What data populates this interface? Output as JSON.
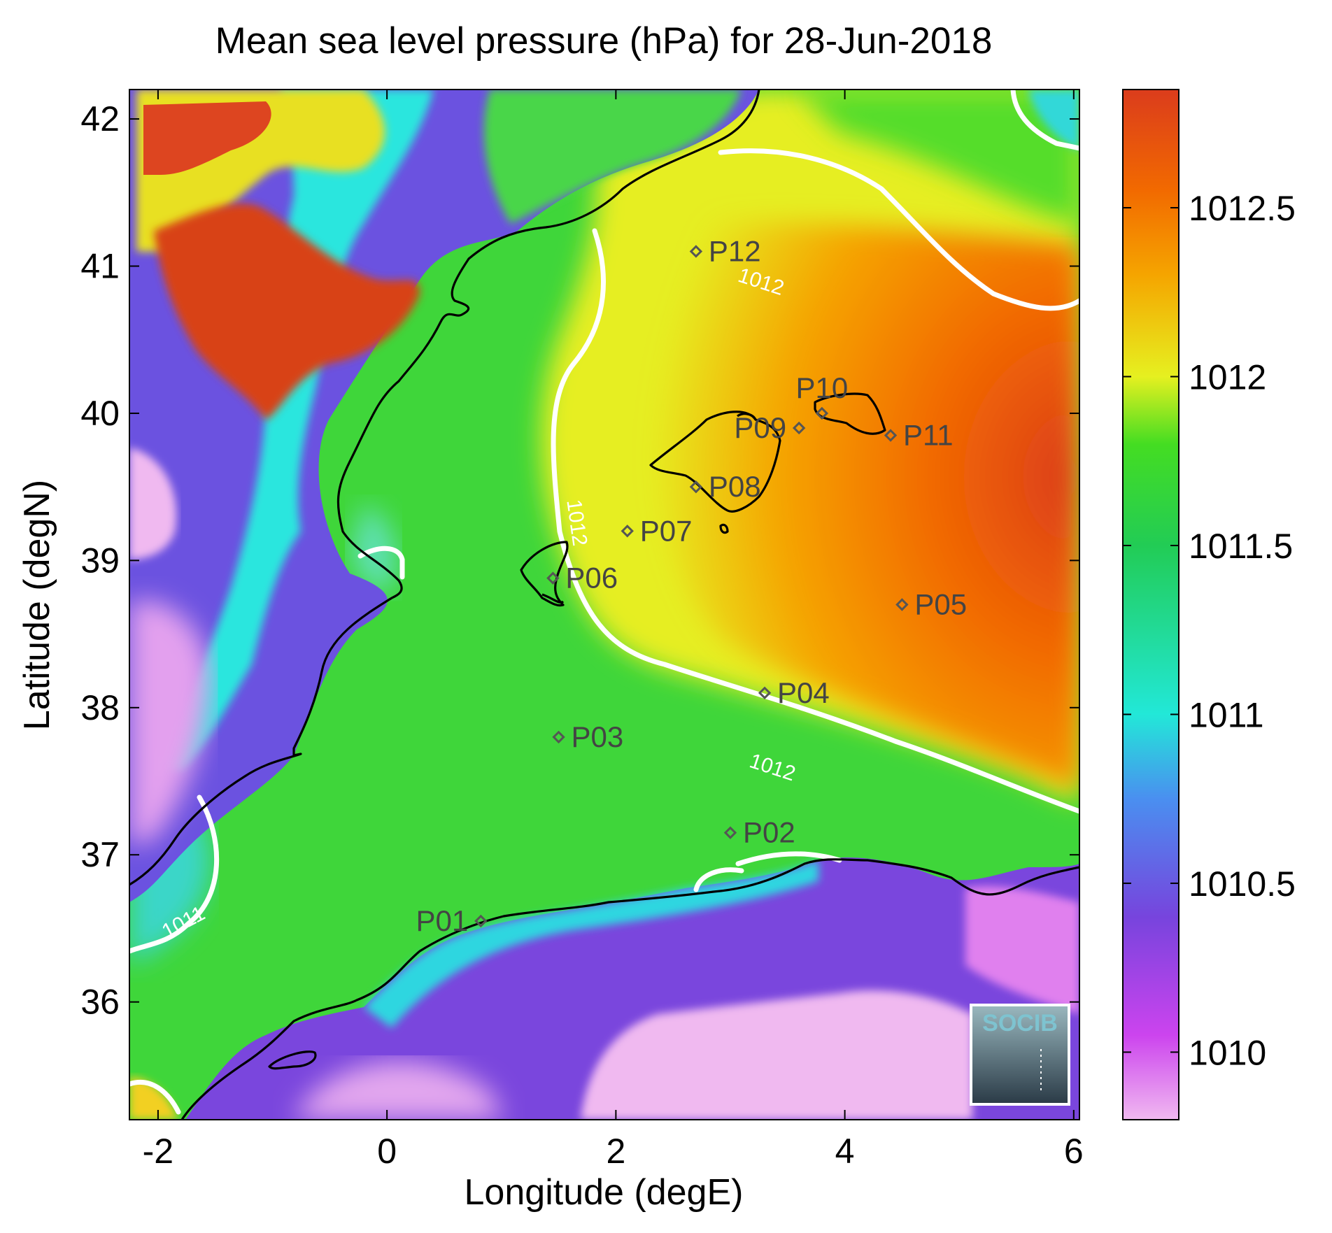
{
  "title": "Mean sea level pressure (hPa) for 28-Jun-2018",
  "xlabel": "Longitude (degE)",
  "ylabel": "Latitude (degN)",
  "xaxis": {
    "range": [
      -2.25,
      6.05
    ],
    "ticks": [
      -2,
      0,
      2,
      4,
      6
    ],
    "tick_labels": [
      "-2",
      "0",
      "2",
      "4",
      "6"
    ]
  },
  "yaxis": {
    "range": [
      35.2,
      42.2
    ],
    "ticks": [
      36,
      37,
      38,
      39,
      40,
      41,
      42
    ],
    "tick_labels": [
      "36",
      "37",
      "38",
      "39",
      "40",
      "41",
      "42"
    ]
  },
  "colorbar": {
    "range": [
      1009.8,
      1012.85
    ],
    "ticks": [
      1010,
      1010.5,
      1011,
      1011.5,
      1012,
      1012.5
    ],
    "tick_labels": [
      "1010",
      "1010.5",
      "1011",
      "1011.5",
      "1012",
      "1012.5"
    ],
    "stops": [
      {
        "v": 1009.8,
        "color": "#f0b9f0"
      },
      {
        "v": 1010.05,
        "color": "#cc44ee"
      },
      {
        "v": 1010.4,
        "color": "#7744dd"
      },
      {
        "v": 1010.75,
        "color": "#4a8ff0"
      },
      {
        "v": 1011.0,
        "color": "#22e8d8"
      },
      {
        "v": 1011.5,
        "color": "#22cc55"
      },
      {
        "v": 1011.8,
        "color": "#44dd22"
      },
      {
        "v": 1012.0,
        "color": "#e6f020"
      },
      {
        "v": 1012.3,
        "color": "#f5a500"
      },
      {
        "v": 1012.55,
        "color": "#f26a00"
      },
      {
        "v": 1012.85,
        "color": "#db3c1c"
      }
    ]
  },
  "contours": [
    {
      "label": "1012",
      "lon": 3.25,
      "lat": 40.85
    },
    {
      "label": "1012",
      "lon": 1.6,
      "lat": 39.25
    },
    {
      "label": "1012",
      "lon": 3.35,
      "lat": 37.55
    },
    {
      "label": "1011",
      "lon": -1.75,
      "lat": 36.5
    }
  ],
  "stations": [
    {
      "label": "P01",
      "lon": 0.82,
      "lat": 36.55,
      "label_side": "left"
    },
    {
      "label": "P02",
      "lon": 3.0,
      "lat": 37.15,
      "label_side": "right"
    },
    {
      "label": "P03",
      "lon": 1.5,
      "lat": 37.8,
      "label_side": "right"
    },
    {
      "label": "P04",
      "lon": 3.3,
      "lat": 38.1,
      "label_side": "right"
    },
    {
      "label": "P05",
      "lon": 4.5,
      "lat": 38.7,
      "label_side": "right"
    },
    {
      "label": "P06",
      "lon": 1.45,
      "lat": 38.88,
      "label_side": "right"
    },
    {
      "label": "P07",
      "lon": 2.1,
      "lat": 39.2,
      "label_side": "right"
    },
    {
      "label": "P08",
      "lon": 2.7,
      "lat": 39.5,
      "label_side": "right"
    },
    {
      "label": "P09",
      "lon": 3.6,
      "lat": 39.9,
      "label_side": "left"
    },
    {
      "label": "P10",
      "lon": 3.8,
      "lat": 40.0,
      "label_side": "above"
    },
    {
      "label": "P11",
      "lon": 4.4,
      "lat": 39.85,
      "label_side": "right"
    },
    {
      "label": "P12",
      "lon": 2.7,
      "lat": 41.1,
      "label_side": "right"
    }
  ],
  "logo": {
    "text": "SOCIB"
  }
}
